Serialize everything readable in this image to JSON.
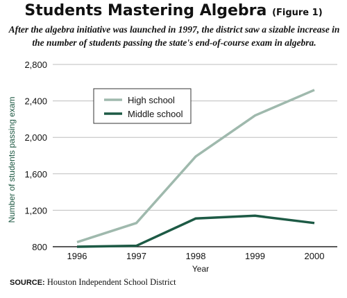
{
  "chart_data": {
    "type": "line",
    "title": "Students Mastering Algebra",
    "figure_label": "(Figure 1)",
    "subtitle": "After the algebra initiative was launched in 1997, the district saw a sizable increase in the number of students passing the state's end-of-course exam in algebra.",
    "xlabel": "Year",
    "ylabel": "Number of students passing exam",
    "x": [
      "1996",
      "1997",
      "1998",
      "1999",
      "2000"
    ],
    "ylim": [
      800,
      2800
    ],
    "yticks": [
      800,
      1200,
      1600,
      2000,
      2400,
      2800
    ],
    "ytick_labels": [
      "800",
      "1,200",
      "1,600",
      "2,000",
      "2,400",
      "2,800"
    ],
    "grid": "horizontal",
    "legend_position": "top-left",
    "series": [
      {
        "name": "High school",
        "color": "#9fb9ad",
        "values": [
          850,
          1060,
          1790,
          2240,
          2520
        ]
      },
      {
        "name": "Middle school",
        "color": "#1d5a45",
        "values": [
          800,
          810,
          1110,
          1140,
          1060
        ]
      }
    ]
  },
  "source": {
    "label": "SOURCE:",
    "text": "Houston Independent School District"
  }
}
